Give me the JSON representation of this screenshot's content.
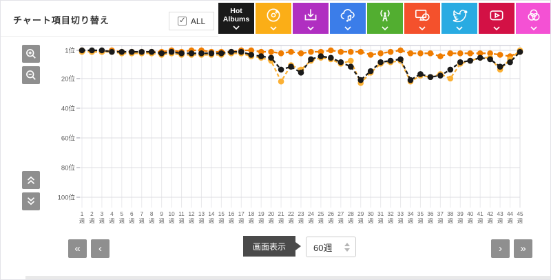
{
  "header": {
    "title": "チャート項目切り替え",
    "all_checkbox": {
      "label": "ALL",
      "checked": true
    },
    "metric_buttons": [
      {
        "label": "Hot Albums",
        "icon": "none",
        "color": "#1a1a1a"
      },
      {
        "label": "",
        "icon": "disc-icon",
        "color": "#fbae17"
      },
      {
        "label": "",
        "icon": "download-icon",
        "color": "#b02fc1"
      },
      {
        "label": "",
        "icon": "cloud-music-icon",
        "color": "#3b7de9"
      },
      {
        "label": "",
        "icon": "radio-tower-icon",
        "color": "#52ae30"
      },
      {
        "label": "",
        "icon": "monitor-disc-icon",
        "color": "#f4512c"
      },
      {
        "label": "",
        "icon": "twitter-bird-icon",
        "color": "#29abe2"
      },
      {
        "label": "",
        "icon": "youtube-play-icon",
        "color": "#d31145"
      },
      {
        "label": "",
        "icon": "venn-circles-icon",
        "color": "#f451d4"
      }
    ]
  },
  "chart_data": {
    "type": "line",
    "title": "",
    "x": [
      1,
      2,
      3,
      4,
      5,
      6,
      7,
      8,
      9,
      10,
      11,
      12,
      13,
      14,
      15,
      16,
      17,
      18,
      19,
      20,
      21,
      22,
      23,
      24,
      25,
      26,
      27,
      28,
      29,
      30,
      31,
      32,
      33,
      34,
      35,
      36,
      37,
      38,
      39,
      40,
      41,
      42,
      43,
      44,
      45
    ],
    "x_suffix": "週",
    "y_axis": {
      "tick_labels": [
        "1位",
        "20位",
        "40位",
        "60位",
        "80位",
        "100位"
      ],
      "tick_ranks": [
        1,
        20,
        40,
        60,
        80,
        100
      ],
      "inverted": true,
      "range": [
        1,
        100
      ]
    },
    "grid": true,
    "legend": "none",
    "series": [
      {
        "name": "orange-dashed-series",
        "color": "#ef7c00",
        "dashed": true,
        "values": [
          1,
          2,
          2,
          1,
          2,
          2,
          2,
          2,
          2,
          1,
          2,
          1,
          1,
          2,
          2,
          2,
          1,
          1,
          2,
          2,
          3,
          2,
          3,
          2,
          2,
          1,
          2,
          2,
          2,
          4,
          3,
          2,
          1,
          3,
          3,
          3,
          5,
          3,
          3,
          3,
          3,
          3,
          4,
          5,
          2
        ]
      },
      {
        "name": "amber-series",
        "color": "#fbb034",
        "dashed": true,
        "values": [
          2,
          2,
          2,
          2,
          3,
          3,
          3,
          3,
          4,
          3,
          4,
          4,
          4,
          4,
          4,
          3,
          3,
          5,
          6,
          8,
          22,
          11,
          14,
          8,
          6,
          7,
          10,
          8,
          23,
          16,
          10,
          9,
          8,
          22,
          18,
          19,
          17,
          20,
          10,
          8,
          6,
          6,
          14,
          7,
          1
        ]
      },
      {
        "name": "black-series",
        "color": "#1a1a1a",
        "dashed": true,
        "values": [
          1,
          1,
          1,
          2,
          2,
          2,
          2,
          2,
          3,
          2,
          3,
          3,
          3,
          3,
          3,
          2,
          2,
          4,
          5,
          6,
          14,
          12,
          16,
          7,
          5,
          6,
          9,
          12,
          21,
          15,
          9,
          8,
          7,
          21,
          17,
          19,
          18,
          14,
          9,
          8,
          6,
          7,
          12,
          9,
          2
        ]
      }
    ]
  },
  "pager": {
    "first_label": "«",
    "prev_label": "‹",
    "next_label": "›",
    "last_label": "»",
    "display_button_label": "画面表示",
    "range_input_value": "60週"
  }
}
